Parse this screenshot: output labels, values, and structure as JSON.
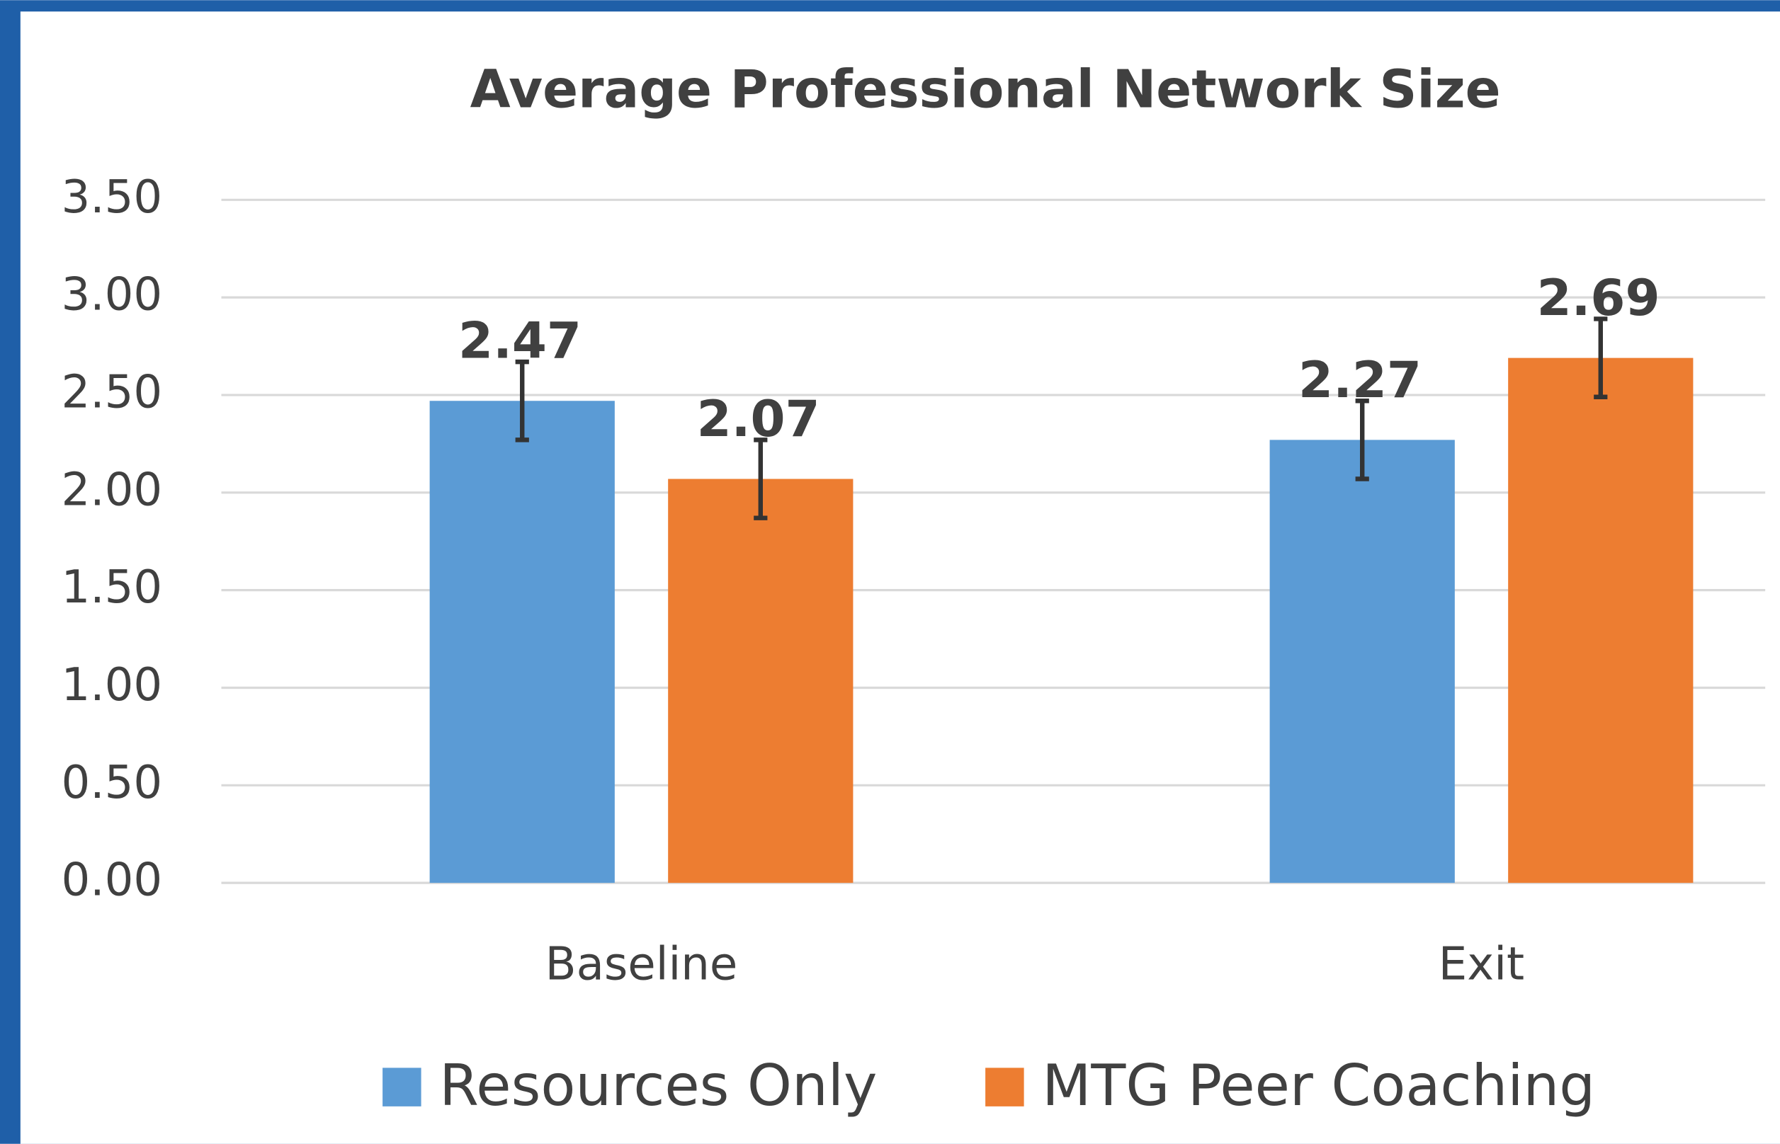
{
  "chart_data": {
    "type": "bar",
    "title": "Average Professional Network Size",
    "categories": [
      "Baseline",
      "Exit"
    ],
    "series": [
      {
        "name": "Resources Only",
        "color": "#5b9bd5",
        "values": [
          2.47,
          2.27
        ],
        "errors": [
          0.2,
          0.2
        ]
      },
      {
        "name": "MTG Peer Coaching",
        "color": "#ed7d31",
        "values": [
          2.07,
          2.69
        ],
        "errors": [
          0.2,
          0.2
        ]
      }
    ],
    "ylim": [
      0,
      3.5
    ],
    "yticks": [
      {
        "value": 0,
        "label": "0.00"
      },
      {
        "value": 0.5,
        "label": "0.50"
      },
      {
        "value": 1,
        "label": "1.00"
      },
      {
        "value": 1.5,
        "label": "1.50"
      },
      {
        "value": 2,
        "label": "2.00"
      },
      {
        "value": 2.5,
        "label": "2.50"
      },
      {
        "value": 3,
        "label": "3.00"
      },
      {
        "value": 3.5,
        "label": "3.50"
      }
    ],
    "grid": true,
    "legend": "bottom"
  }
}
